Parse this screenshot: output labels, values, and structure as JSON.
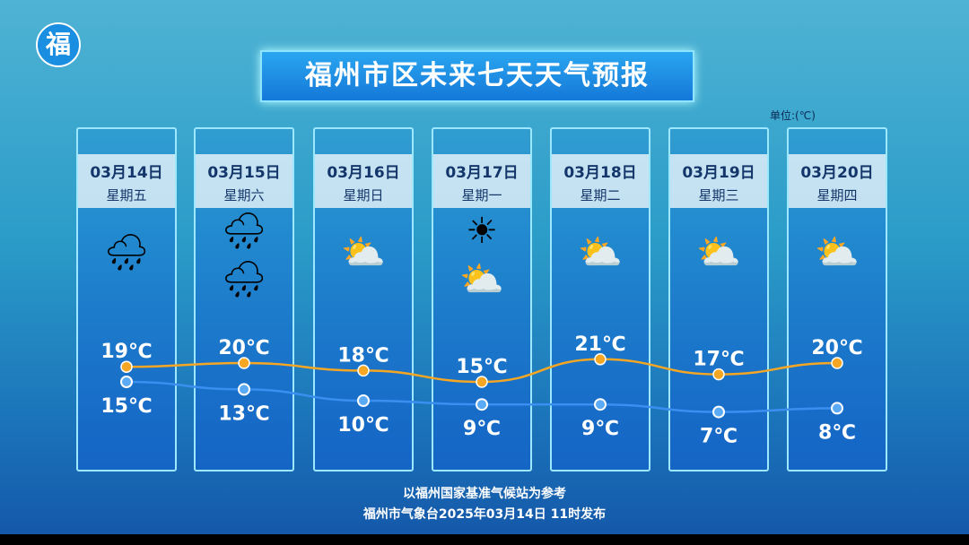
{
  "logo": {
    "glyph": "福"
  },
  "title": "福州市区未来七天天气预报",
  "unit": "单位:(℃)",
  "days": [
    {
      "date": "03月14日",
      "weekday": "星期五",
      "icons": [
        "cloud-rain-icon"
      ],
      "glyphs": [
        "🌧"
      ]
    },
    {
      "date": "03月15日",
      "weekday": "星期六",
      "icons": [
        "cloud-rain-icon",
        "cloud-rain-icon"
      ],
      "glyphs": [
        "🌧",
        "🌧"
      ]
    },
    {
      "date": "03月16日",
      "weekday": "星期日",
      "icons": [
        "partly-cloudy-icon"
      ],
      "glyphs": [
        "⛅"
      ]
    },
    {
      "date": "03月17日",
      "weekday": "星期一",
      "icons": [
        "sun-icon",
        "partly-cloudy-icon"
      ],
      "glyphs": [
        "☀",
        "⛅"
      ]
    },
    {
      "date": "03月18日",
      "weekday": "星期二",
      "icons": [
        "partly-cloudy-icon"
      ],
      "glyphs": [
        "⛅"
      ]
    },
    {
      "date": "03月19日",
      "weekday": "星期三",
      "icons": [
        "partly-cloudy-icon"
      ],
      "glyphs": [
        "⛅"
      ]
    },
    {
      "date": "03月20日",
      "weekday": "星期四",
      "icons": [
        "partly-cloudy-icon"
      ],
      "glyphs": [
        "⛅"
      ]
    }
  ],
  "chart_data": {
    "type": "line",
    "categories": [
      "03月14日",
      "03月15日",
      "03月16日",
      "03月17日",
      "03月18日",
      "03月19日",
      "03月20日"
    ],
    "series": [
      {
        "key": "high",
        "values": [
          19,
          20,
          18,
          15,
          21,
          17,
          20
        ],
        "labels": [
          "19℃",
          "20℃",
          "18℃",
          "15℃",
          "21℃",
          "17℃",
          "20℃"
        ],
        "color": "#f5a623"
      },
      {
        "key": "low",
        "values": [
          15,
          13,
          10,
          9,
          9,
          7,
          8
        ],
        "labels": [
          "15℃",
          "13℃",
          "10℃",
          "9℃",
          "9℃",
          "7℃",
          "8℃"
        ],
        "color": "#3a8ff0"
      }
    ]
  },
  "footer": {
    "line1": "以福州国家基准气候站为参考",
    "line2": "福州市气象台2025年03月14日 11时发布"
  }
}
